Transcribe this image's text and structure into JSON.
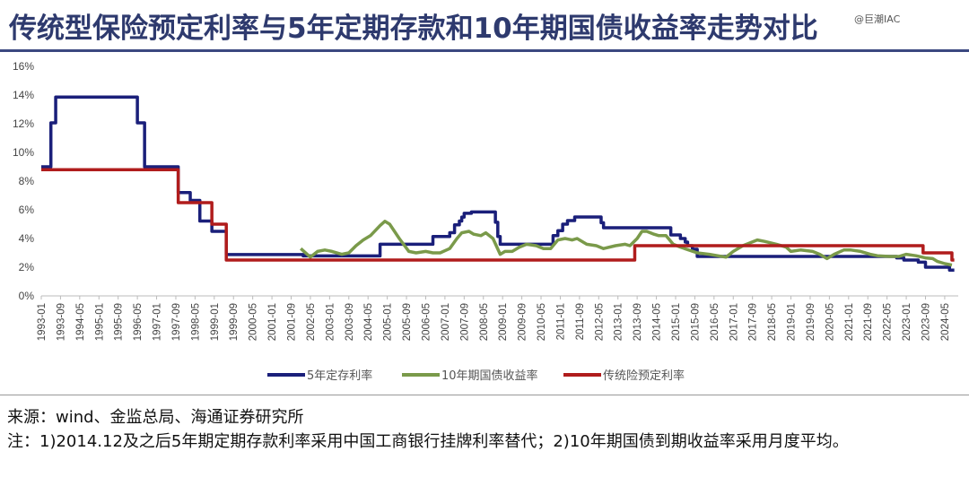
{
  "title": "传统型保险预定利率与5年定期存款和10年期国债收益率走势对比",
  "watermark": "@巨潮IAC",
  "source": "来源：wind、金监总局、海通证券研究所",
  "note": "注：1)2014.12及之后5年期定期存款利率采用中国工商银行挂牌利率替代；2)10年期国债到期收益率采用月度平均。",
  "chart_data": {
    "type": "line",
    "title": "传统型保险预定利率与5年定期存款和10年期国债收益率走势对比",
    "xlabel": "",
    "ylabel": "",
    "ylim": [
      0,
      16
    ],
    "yticks": [
      "0%",
      "2%",
      "4%",
      "6%",
      "8%",
      "10%",
      "12%",
      "14%",
      "16%"
    ],
    "xticks": [
      "1993-01",
      "1993-09",
      "1994-05",
      "1995-01",
      "1995-09",
      "1996-05",
      "1997-01",
      "1997-09",
      "1998-05",
      "1999-01",
      "1999-09",
      "2000-05",
      "2001-01",
      "2001-09",
      "2002-05",
      "2003-01",
      "2003-09",
      "2004-05",
      "2005-01",
      "2005-09",
      "2006-05",
      "2007-01",
      "2007-09",
      "2008-05",
      "2009-01",
      "2009-09",
      "2010-05",
      "2011-01",
      "2011-09",
      "2012-05",
      "2013-01",
      "2013-09",
      "2014-05",
      "2015-01",
      "2015-09",
      "2016-05",
      "2017-01",
      "2017-09",
      "2018-05",
      "2019-01",
      "2019-09",
      "2020-05",
      "2021-01",
      "2021-09",
      "2022-05",
      "2023-01",
      "2023-09",
      "2024-05"
    ],
    "grid": false,
    "legend": "bottom",
    "series": [
      {
        "name": "5年定存利率",
        "color": "#1a1f7a",
        "step": true,
        "points": [
          [
            "1993-01",
            9.0
          ],
          [
            "1993-05",
            12.06
          ],
          [
            "1993-07",
            13.86
          ],
          [
            "1996-05",
            12.06
          ],
          [
            "1996-08",
            9.0
          ],
          [
            "1997-10",
            7.2
          ],
          [
            "1998-03",
            6.66
          ],
          [
            "1998-07",
            5.22
          ],
          [
            "1998-12",
            4.5
          ],
          [
            "1999-06",
            2.88
          ],
          [
            "2002-02",
            2.79
          ],
          [
            "2004-10",
            3.6
          ],
          [
            "2006-08",
            4.14
          ],
          [
            "2007-03",
            4.41
          ],
          [
            "2007-05",
            4.95
          ],
          [
            "2007-07",
            5.22
          ],
          [
            "2007-08",
            5.49
          ],
          [
            "2007-09",
            5.76
          ],
          [
            "2007-12",
            5.85
          ],
          [
            "2008-10",
            5.13
          ],
          [
            "2008-11",
            4.14
          ],
          [
            "2008-12",
            3.6
          ],
          [
            "2010-10",
            4.2
          ],
          [
            "2010-12",
            4.55
          ],
          [
            "2011-02",
            5.0
          ],
          [
            "2011-04",
            5.25
          ],
          [
            "2011-07",
            5.5
          ],
          [
            "2012-06",
            5.1
          ],
          [
            "2012-07",
            4.75
          ],
          [
            "2014-11",
            4.25
          ],
          [
            "2015-03",
            4.0
          ],
          [
            "2015-05",
            3.75
          ],
          [
            "2015-06",
            3.5
          ],
          [
            "2015-08",
            3.25
          ],
          [
            "2015-10",
            2.75
          ],
          [
            "2022-09",
            2.65
          ],
          [
            "2022-12",
            2.5
          ],
          [
            "2023-06",
            2.35
          ],
          [
            "2023-09",
            2.0
          ],
          [
            "2024-07",
            1.8
          ],
          [
            "2024-09",
            1.8
          ]
        ]
      },
      {
        "name": "10年期国债收益率",
        "color": "#7a9a4a",
        "step": false,
        "points": [
          [
            "2002-01",
            3.3
          ],
          [
            "2002-05",
            2.7
          ],
          [
            "2002-08",
            3.1
          ],
          [
            "2002-11",
            3.2
          ],
          [
            "2003-02",
            3.1
          ],
          [
            "2003-06",
            2.9
          ],
          [
            "2003-09",
            3.0
          ],
          [
            "2003-12",
            3.5
          ],
          [
            "2004-03",
            3.9
          ],
          [
            "2004-06",
            4.2
          ],
          [
            "2004-10",
            4.9
          ],
          [
            "2004-12",
            5.2
          ],
          [
            "2005-02",
            5.0
          ],
          [
            "2005-06",
            4.0
          ],
          [
            "2005-10",
            3.1
          ],
          [
            "2006-01",
            3.0
          ],
          [
            "2006-05",
            3.1
          ],
          [
            "2006-08",
            3.0
          ],
          [
            "2006-11",
            3.0
          ],
          [
            "2007-03",
            3.3
          ],
          [
            "2007-06",
            4.0
          ],
          [
            "2007-08",
            4.4
          ],
          [
            "2007-11",
            4.5
          ],
          [
            "2008-01",
            4.3
          ],
          [
            "2008-04",
            4.2
          ],
          [
            "2008-06",
            4.4
          ],
          [
            "2008-09",
            4.0
          ],
          [
            "2008-12",
            2.9
          ],
          [
            "2009-02",
            3.1
          ],
          [
            "2009-05",
            3.1
          ],
          [
            "2009-08",
            3.4
          ],
          [
            "2009-11",
            3.6
          ],
          [
            "2010-03",
            3.5
          ],
          [
            "2010-06",
            3.3
          ],
          [
            "2010-09",
            3.3
          ],
          [
            "2010-12",
            3.9
          ],
          [
            "2011-03",
            4.0
          ],
          [
            "2011-06",
            3.9
          ],
          [
            "2011-08",
            4.0
          ],
          [
            "2011-12",
            3.6
          ],
          [
            "2012-04",
            3.5
          ],
          [
            "2012-07",
            3.3
          ],
          [
            "2012-12",
            3.5
          ],
          [
            "2013-04",
            3.6
          ],
          [
            "2013-06",
            3.5
          ],
          [
            "2013-09",
            4.0
          ],
          [
            "2013-11",
            4.5
          ],
          [
            "2014-01",
            4.5
          ],
          [
            "2014-04",
            4.3
          ],
          [
            "2014-06",
            4.2
          ],
          [
            "2014-09",
            4.2
          ],
          [
            "2014-12",
            3.6
          ],
          [
            "2015-03",
            3.4
          ],
          [
            "2015-10",
            3.0
          ],
          [
            "2016-03",
            2.9
          ],
          [
            "2016-10",
            2.7
          ],
          [
            "2017-01",
            3.1
          ],
          [
            "2017-05",
            3.5
          ],
          [
            "2017-11",
            3.9
          ],
          [
            "2018-02",
            3.8
          ],
          [
            "2018-07",
            3.6
          ],
          [
            "2018-11",
            3.4
          ],
          [
            "2019-01",
            3.1
          ],
          [
            "2019-05",
            3.2
          ],
          [
            "2019-10",
            3.1
          ],
          [
            "2020-01",
            2.9
          ],
          [
            "2020-04",
            2.6
          ],
          [
            "2020-07",
            2.9
          ],
          [
            "2020-11",
            3.2
          ],
          [
            "2021-02",
            3.2
          ],
          [
            "2021-06",
            3.1
          ],
          [
            "2021-10",
            2.9
          ],
          [
            "2022-01",
            2.8
          ],
          [
            "2022-06",
            2.75
          ],
          [
            "2022-10",
            2.75
          ],
          [
            "2023-01",
            2.9
          ],
          [
            "2023-05",
            2.8
          ],
          [
            "2023-09",
            2.65
          ],
          [
            "2023-12",
            2.6
          ],
          [
            "2024-02",
            2.4
          ],
          [
            "2024-05",
            2.25
          ],
          [
            "2024-08",
            2.15
          ]
        ]
      },
      {
        "name": "传统险预定利率",
        "color": "#b01c1c",
        "step": true,
        "points": [
          [
            "1993-01",
            8.8
          ],
          [
            "1997-10",
            6.5
          ],
          [
            "1998-12",
            5.0
          ],
          [
            "1999-06",
            2.5
          ],
          [
            "2013-08",
            3.5
          ],
          [
            "2023-08",
            3.0
          ],
          [
            "2024-08",
            2.5
          ],
          [
            "2024-09",
            2.5
          ]
        ]
      }
    ]
  }
}
